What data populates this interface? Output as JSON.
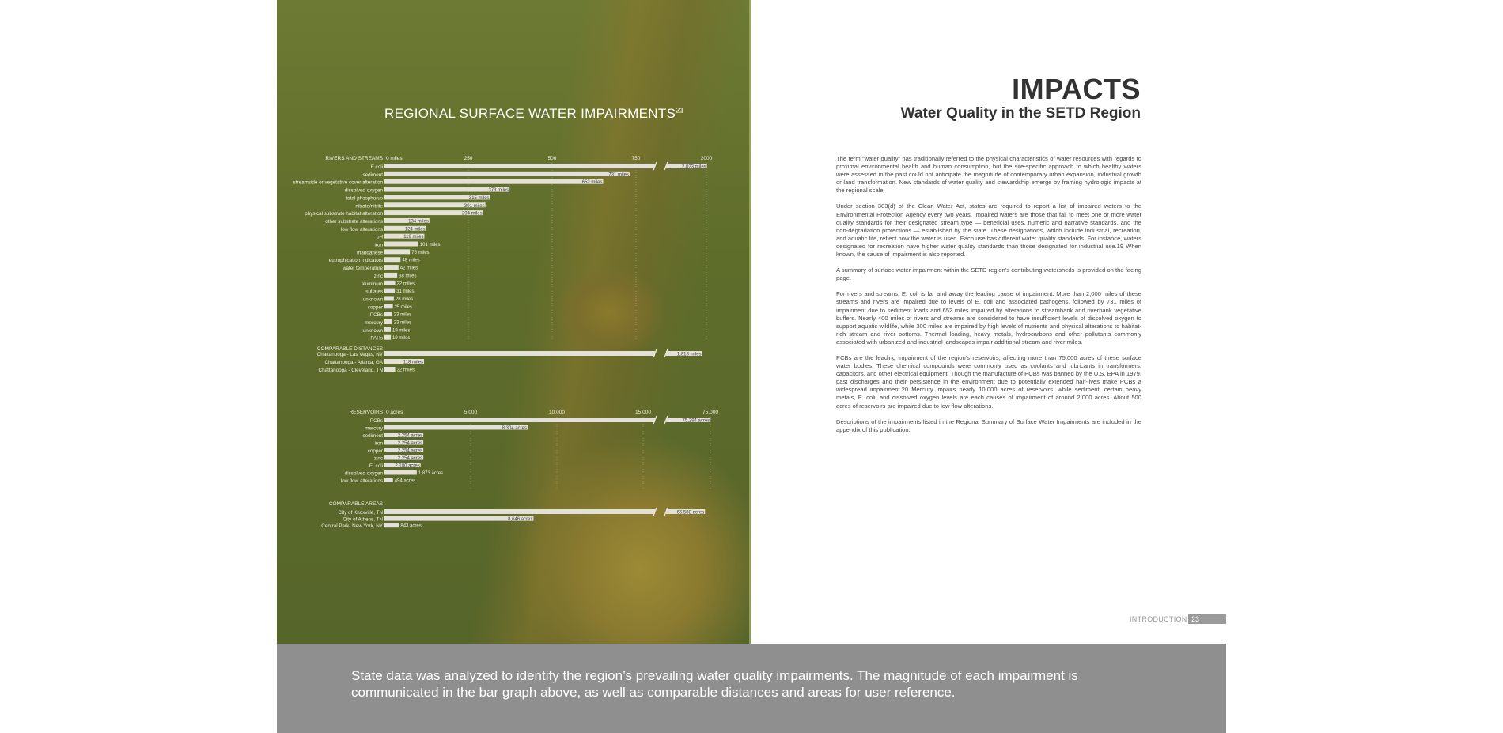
{
  "page": {
    "title": "IMPACTS",
    "subtitle": "Water Quality in the SETD Region",
    "paragraphs": [
      "The term “water quality” has traditionally referred to the physical characteristics of water resources with regards to proximal environmental health and human consumption, but the site-specific approach to which healthy waters were assessed in the past could not anticipate the magnitude of contemporary urban expansion, industrial growth or land transformation. New standards of water quality and stewardship emerge by framing hydrologic impacts at the regional scale.",
      "Under section 303(d) of the Clean Water Act, states are required to report a list of impaired waters to the Environmental Protection Agency every two years. Impaired waters are those that fail to meet one or more water quality standards for their designated stream type — beneficial uses, numeric and narrative standards, and the non-degradation protections — established by the state. These designations, which include industrial, recreation, and aquatic life, reflect how the water is used. Each use has different water quality standards. For instance, waters designated for recreation have higher water quality standards than those designated for industrial use.19 When known, the cause of impairment is also reported.",
      "A summary of surface water impairment within the SETD region’s contributing watersheds is provided on the facing page.",
      "For rivers and streams, E. coli is far and away the leading cause of impairment. More than 2,000 miles of these streams and rivers are impaired due to levels of E. coli and associated pathogens, followed by 731 miles of impairment due to sediment loads and 652 miles impaired by alterations to streambank and riverbank vegetative buffers. Nearly 400 miles of rivers and streams are considered to have insufficient levels of dissolved oxygen to support aquatic wildlife, while 300 miles are impaired by high levels of nutrients and physical alterations to habitat-rich stream and river bottoms. Thermal loading, heavy metals, hydrocarbons and other pollutants commonly associated with urbanized and industrial landscapes impair additional stream and river miles.",
      "PCBs are the leading impairment of the region’s reservoirs, affecting more than 75,000 acres of these surface water bodies. These chemical compounds were commonly used as coolants and lubricants in transformers, capacitors, and other electrical equipment. Though the manufacture of PCBs was banned by the U.S. EPA in 1979, past discharges and their persistence in the environment due to potentially extended half-lives make PCBs a widespread impairment.20 Mercury impairs nearly 10,000 acres of reservoirs, while sediment, certain heavy metals, E. coli, and dissolved oxygen levels are each causes of impairment of around 2,000 acres. About 500 acres of reservoirs are impaired due to low flow alterations.",
      "Descriptions of the impairments listed in the Regional Summary of Surface Water Impairments are included in the appendix of this publication."
    ],
    "footer_label": "INTRODUCTION",
    "page_number": "23",
    "caption": "State data was analyzed to identify the region’s prevailing water quality impairments. The magnitude of each impairment is communicated in the bar graph above, as well as comparable distances and areas for user reference."
  },
  "chart_data": [
    {
      "type": "bar",
      "orientation": "horizontal",
      "title": "REGIONAL SURFACE WATER IMPAIRMENTS",
      "title_footnote": "21",
      "section": "RIVERS AND STREAMS",
      "unit": "miles",
      "axis_ticks": [
        "0 miles",
        "250",
        "500",
        "750",
        "2000"
      ],
      "axis_break": true,
      "categories": [
        "E.coli",
        "sediment",
        "streamside or vegetative cover alteration",
        "dissolved oxygen",
        "total phosphorus",
        "nitrate/nitrite",
        "physical substrate habitat alteration",
        "other substrate alterations",
        "low flow alterations",
        "pH",
        "iron",
        "manganese",
        "eutrophication indicators",
        "water temperature",
        "zinc",
        "aluminum",
        "sulfates",
        "unknown",
        "copper",
        "PCBs",
        "mercury",
        "unknown",
        "PAHs"
      ],
      "values": [
        2023,
        731,
        652,
        373,
        315,
        301,
        294,
        134,
        124,
        119,
        101,
        76,
        48,
        42,
        38,
        32,
        31,
        28,
        25,
        23,
        23,
        19,
        19
      ]
    },
    {
      "type": "bar",
      "orientation": "horizontal",
      "section": "COMPARABLE DISTANCES",
      "unit": "miles",
      "axis_break": true,
      "categories": [
        "Chattanooga - Las Vegas, NV",
        "Chattanooga - Atlanta, GA",
        "Chattanooga - Cleveland, TN"
      ],
      "values": [
        1818,
        118,
        32
      ]
    },
    {
      "type": "bar",
      "orientation": "horizontal",
      "section": "RESERVOIRS",
      "unit": "acres",
      "axis_ticks": [
        "0 acres",
        "5,000",
        "10,000",
        "15,000",
        "75,000"
      ],
      "axis_break": true,
      "categories": [
        "PCBs",
        "mercury",
        "sediment",
        "iron",
        "copper",
        "zinc",
        "E. coli",
        "dissolved oxygen",
        "low flow alterations"
      ],
      "values": [
        75294,
        8304,
        2254,
        2254,
        2254,
        2254,
        2100,
        1873,
        494
      ]
    },
    {
      "type": "bar",
      "orientation": "horizontal",
      "section": "COMPARABLE AREAS",
      "unit": "acres",
      "axis_break": true,
      "categories": [
        "City of Knoxville, TN",
        "City of Athens, TN",
        "Central Park- New York, NY"
      ],
      "values": [
        66588,
        8646,
        843
      ]
    }
  ],
  "colors": {
    "bar": "#e3e0d6",
    "caption_bg": "#8f8f90",
    "title": "#333333"
  }
}
